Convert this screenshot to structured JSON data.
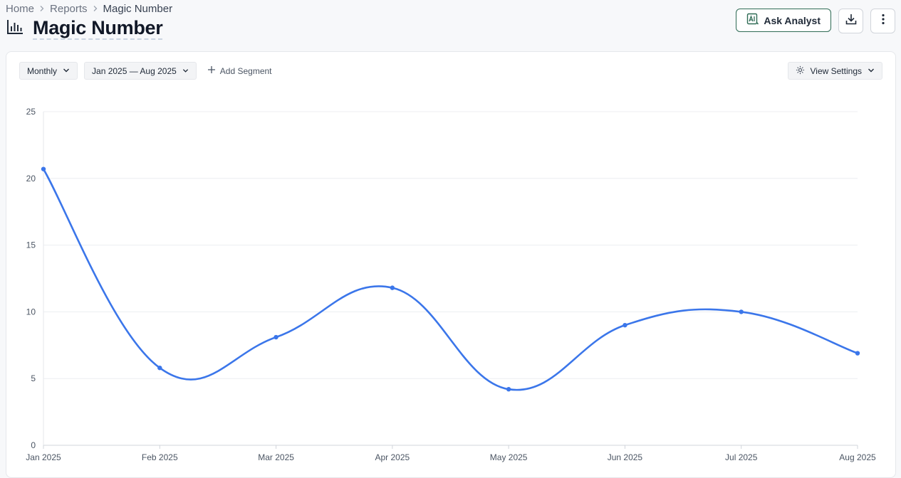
{
  "breadcrumb": {
    "home": "Home",
    "reports": "Reports",
    "current": "Magic Number"
  },
  "page": {
    "title": "Magic Number"
  },
  "actions": {
    "ask_analyst": "Ask Analyst"
  },
  "toolbar": {
    "granularity": "Monthly",
    "date_range": "Jan 2025 — Aug 2025",
    "add_segment": "Add Segment",
    "view_settings": "View Settings"
  },
  "colors": {
    "accent": "#3b76ea",
    "ask_border": "#2f6b55"
  },
  "chart_data": {
    "type": "line",
    "categories": [
      "Jan 2025",
      "Feb 2025",
      "Mar 2025",
      "Apr 2025",
      "May 2025",
      "Jun 2025",
      "Jul 2025",
      "Aug 2025"
    ],
    "series": [
      {
        "values": [
          20.7,
          5.8,
          8.1,
          11.8,
          4.2,
          9.0,
          10.0,
          6.9
        ]
      }
    ],
    "ylim": [
      0,
      25
    ],
    "yticks": [
      0,
      5,
      10,
      15,
      20,
      25
    ],
    "grid": true,
    "legend": "none"
  }
}
